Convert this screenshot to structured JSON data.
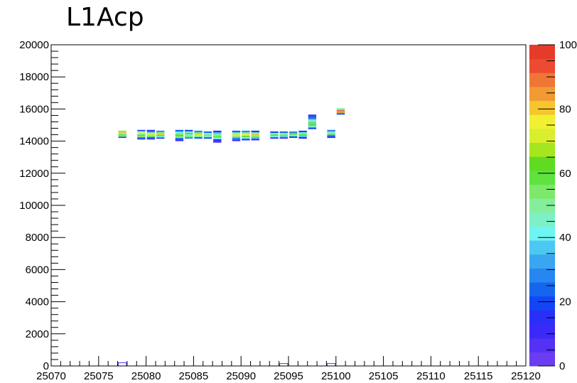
{
  "title": "L1Acp",
  "chart_data": {
    "type": "heatmap",
    "title": "L1Acp",
    "xlabel": "",
    "ylabel": "",
    "xlim": [
      25070,
      25120
    ],
    "ylim": [
      0,
      20000
    ],
    "zlim": [
      0,
      100
    ],
    "x_ticks": [
      25070,
      25075,
      25080,
      25085,
      25090,
      25095,
      25100,
      25105,
      25110,
      25115,
      25120
    ],
    "x_tick_labels": [
      "25070",
      "25075",
      "25080",
      "25085",
      "25090",
      "25095",
      "25100",
      "25105",
      "25110",
      "25115",
      "25120"
    ],
    "y_ticks": [
      0,
      2000,
      4000,
      6000,
      8000,
      10000,
      12000,
      14000,
      16000,
      18000,
      20000
    ],
    "y_tick_labels": [
      "0",
      "2000",
      "4000",
      "6000",
      "8000",
      "10000",
      "12000",
      "14000",
      "16000",
      "18000",
      "20000"
    ],
    "z_ticks": [
      0,
      20,
      40,
      60,
      80,
      100
    ],
    "z_tick_labels": [
      "0",
      "20",
      "40",
      "60",
      "80",
      "100"
    ],
    "palette": [
      "#6a3df0",
      "#5530f5",
      "#3b2af7",
      "#2a2ff8",
      "#1246f5",
      "#1566ee",
      "#2687f0",
      "#3aa6f0",
      "#4dc8f2",
      "#6ef4f2",
      "#7df0c6",
      "#84ee9c",
      "#7ee86a",
      "#5fe23e",
      "#5fdc22",
      "#a6e61e",
      "#d9ef2e",
      "#f2f131",
      "#f5c62e",
      "#f19a33",
      "#ef7636",
      "#ec4b32",
      "#e63a2a"
    ],
    "cells": [
      {
        "x": 25077.5,
        "y_start": 14200,
        "y_end": 14650,
        "z": [
          20,
          55,
          60,
          45,
          80,
          55
        ]
      },
      {
        "x": 25079.5,
        "y_start": 14100,
        "y_end": 14700,
        "z": [
          15,
          30,
          55,
          65,
          50,
          75,
          40,
          20
        ]
      },
      {
        "x": 25080.5,
        "y_start": 14100,
        "y_end": 14700,
        "z": [
          12,
          25,
          60,
          45,
          70,
          50,
          30,
          15
        ]
      },
      {
        "x": 25081.5,
        "y_start": 14150,
        "y_end": 14650,
        "z": [
          18,
          40,
          60,
          80,
          55,
          30
        ]
      },
      {
        "x": 25083.5,
        "y_start": 14000,
        "y_end": 14700,
        "z": [
          10,
          25,
          50,
          65,
          55,
          40,
          25
        ]
      },
      {
        "x": 25084.5,
        "y_start": 14150,
        "y_end": 14700,
        "z": [
          30,
          55,
          40,
          60,
          45,
          20
        ]
      },
      {
        "x": 25085.5,
        "y_start": 14150,
        "y_end": 14650,
        "z": [
          25,
          50,
          70,
          55,
          30
        ]
      },
      {
        "x": 25086.5,
        "y_start": 14150,
        "y_end": 14600,
        "z": [
          20,
          45,
          55,
          40,
          25
        ]
      },
      {
        "x": 25087.5,
        "y_start": 13900,
        "y_end": 14650,
        "z": [
          5,
          15,
          40,
          60,
          50,
          35,
          15
        ]
      },
      {
        "x": 25089.5,
        "y_start": 14000,
        "y_end": 14650,
        "z": [
          12,
          30,
          55,
          70,
          45,
          25
        ]
      },
      {
        "x": 25090.5,
        "y_start": 14050,
        "y_end": 14650,
        "z": [
          15,
          40,
          60,
          75,
          50,
          30
        ]
      },
      {
        "x": 25091.5,
        "y_start": 14050,
        "y_end": 14650,
        "z": [
          12,
          35,
          55,
          80,
          45,
          20
        ]
      },
      {
        "x": 25093.5,
        "y_start": 14150,
        "y_end": 14600,
        "z": [
          15,
          40,
          60,
          45,
          20
        ]
      },
      {
        "x": 25094.5,
        "y_start": 14150,
        "y_end": 14600,
        "z": [
          12,
          35,
          55,
          50,
          25
        ]
      },
      {
        "x": 25095.5,
        "y_start": 14200,
        "y_end": 14600,
        "z": [
          20,
          50,
          60,
          30
        ]
      },
      {
        "x": 25096.5,
        "y_start": 14150,
        "y_end": 14650,
        "z": [
          15,
          35,
          60,
          40,
          20
        ]
      },
      {
        "x": 25097.5,
        "y_start": 14750,
        "y_end": 15650,
        "z": [
          20,
          45,
          60,
          35,
          55,
          45,
          30,
          25,
          15
        ]
      },
      {
        "x": 25099.5,
        "y_start": 14200,
        "y_end": 14700,
        "z": [
          15,
          30,
          55,
          45,
          30
        ]
      },
      {
        "x": 25100.5,
        "y_start": 15650,
        "y_end": 16050,
        "z": [
          25,
          85,
          90,
          45
        ]
      },
      {
        "x": 25077.5,
        "y_start": 0,
        "y_end": 200,
        "z": [
          1
        ]
      },
      {
        "x": 25094.5,
        "y_start": 0,
        "y_end": 150,
        "z": [
          1
        ]
      },
      {
        "x": 25099.5,
        "y_start": 0,
        "y_end": 150,
        "z": [
          1
        ]
      }
    ]
  }
}
